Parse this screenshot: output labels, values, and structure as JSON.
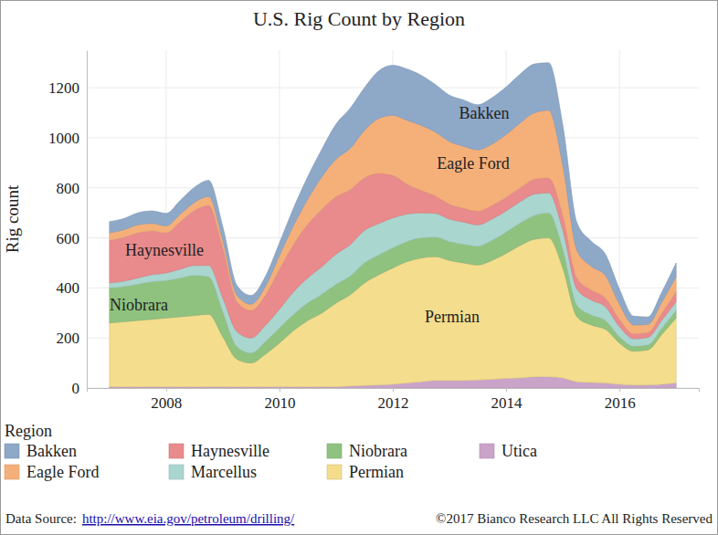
{
  "chart_data": {
    "type": "area",
    "stacked": true,
    "title": "U.S. Rig Count by Region",
    "y_label": "Rig count",
    "legend_title": "Region",
    "legend": "bottom",
    "grid": true,
    "source_label": "Data Source:",
    "source_url": "http://www.eia.gov/petroleum/drilling/",
    "copyright": "©2017 Bianco Research LLC All Rights Reserved",
    "x": [
      2007,
      2007.25,
      2007.5,
      2007.75,
      2008,
      2008.25,
      2008.5,
      2008.75,
      2009,
      2009.25,
      2009.5,
      2009.75,
      2010,
      2010.25,
      2010.5,
      2010.75,
      2011,
      2011.25,
      2011.5,
      2011.75,
      2012,
      2012.25,
      2012.5,
      2012.75,
      2013,
      2013.25,
      2013.5,
      2013.75,
      2014,
      2014.25,
      2014.5,
      2014.75,
      2015,
      2015.25,
      2015.5,
      2015.75,
      2016,
      2016.25,
      2016.5,
      2016.75,
      2017
    ],
    "xlim": [
      2006.6,
      2017.4
    ],
    "xticks": [
      2008,
      2010,
      2012,
      2014,
      2016
    ],
    "ylim": [
      0,
      1350
    ],
    "yticks": [
      0,
      200,
      400,
      600,
      800,
      1000,
      1200
    ],
    "series": [
      {
        "name": "Bakken",
        "color": "#8ea8c8",
        "values": [
          45,
          45,
          48,
          50,
          50,
          55,
          60,
          65,
          55,
          40,
          35,
          40,
          50,
          70,
          90,
          110,
          140,
          160,
          170,
          190,
          200,
          205,
          200,
          190,
          185,
          185,
          180,
          185,
          190,
          195,
          195,
          190,
          160,
          110,
          100,
          85,
          60,
          35,
          30,
          40,
          55
        ]
      },
      {
        "name": "Eagle Ford",
        "color": "#f5b07a",
        "values": [
          30,
          30,
          32,
          30,
          28,
          30,
          32,
          35,
          30,
          25,
          25,
          35,
          55,
          75,
          100,
          130,
          150,
          165,
          190,
          220,
          240,
          255,
          260,
          255,
          250,
          248,
          245,
          245,
          250,
          260,
          265,
          270,
          200,
          110,
          95,
          90,
          60,
          35,
          32,
          45,
          60
        ]
      },
      {
        "name": "Haynesville",
        "color": "#e98a8c",
        "values": [
          170,
          175,
          180,
          175,
          160,
          190,
          220,
          240,
          200,
          120,
          110,
          120,
          160,
          190,
          215,
          230,
          230,
          220,
          210,
          200,
          170,
          120,
          90,
          70,
          60,
          55,
          55,
          55,
          55,
          55,
          60,
          60,
          60,
          45,
          40,
          35,
          30,
          20,
          20,
          28,
          40
        ]
      },
      {
        "name": "Marcellus",
        "color": "#a9d6cf",
        "values": [
          20,
          22,
          25,
          28,
          30,
          35,
          40,
          45,
          55,
          60,
          60,
          65,
          75,
          90,
          100,
          110,
          120,
          125,
          130,
          125,
          120,
          110,
          100,
          95,
          90,
          88,
          85,
          85,
          85,
          85,
          85,
          80,
          75,
          65,
          60,
          55,
          40,
          30,
          30,
          32,
          35
        ]
      },
      {
        "name": "Niobrara",
        "color": "#90c27f",
        "values": [
          140,
          140,
          145,
          150,
          150,
          155,
          160,
          150,
          100,
          50,
          40,
          50,
          60,
          65,
          70,
          75,
          75,
          75,
          80,
          80,
          80,
          80,
          80,
          78,
          75,
          75,
          75,
          80,
          85,
          90,
          95,
          100,
          75,
          45,
          40,
          35,
          25,
          20,
          20,
          25,
          30
        ]
      },
      {
        "name": "Permian",
        "color": "#f4dd8c",
        "values": [
          255,
          260,
          265,
          270,
          275,
          280,
          285,
          290,
          200,
          110,
          95,
          130,
          175,
          225,
          265,
          295,
          335,
          365,
          410,
          440,
          465,
          485,
          495,
          495,
          480,
          470,
          460,
          475,
          500,
          530,
          550,
          555,
          440,
          260,
          230,
          215,
          165,
          135,
          140,
          200,
          260
        ]
      },
      {
        "name": "Utica",
        "color": "#caa3c9",
        "values": [
          5,
          5,
          5,
          5,
          5,
          5,
          5,
          5,
          5,
          5,
          5,
          5,
          5,
          5,
          5,
          5,
          5,
          8,
          10,
          12,
          15,
          20,
          25,
          30,
          30,
          30,
          32,
          35,
          38,
          40,
          45,
          45,
          40,
          25,
          22,
          20,
          15,
          12,
          12,
          15,
          20
        ]
      }
    ]
  }
}
